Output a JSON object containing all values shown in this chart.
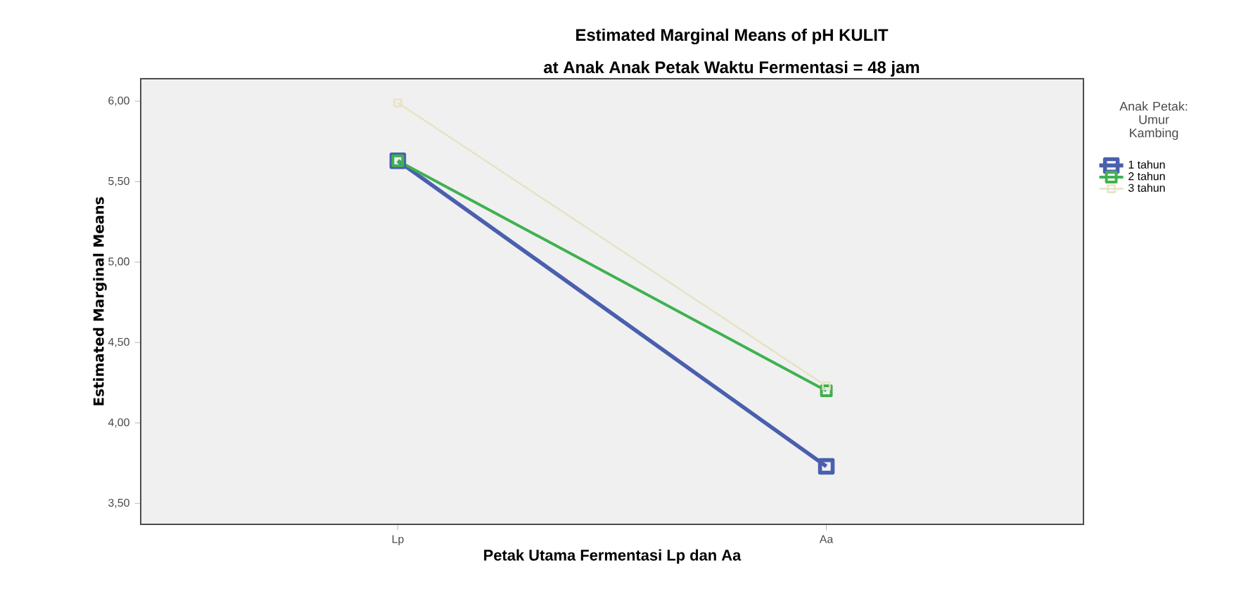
{
  "chart_data": {
    "type": "line",
    "title": "Estimated Marginal Means of pH KULIT",
    "subtitle": "at Anak Anak Petak Waktu Fermentasi = 48 jam",
    "xlabel": "Petak Utama Fermentasi Lp dan Aa",
    "ylabel": "Estimated Marginal Means",
    "legend_title": "Anak Petak: Umur Kambing",
    "categories": [
      "Lp",
      "Aa"
    ],
    "series": [
      {
        "name": "1 tahun",
        "color": "#4a5fae",
        "values": [
          5.63,
          3.73
        ]
      },
      {
        "name": "2 tahun",
        "color": "#3fb150",
        "values": [
          5.63,
          4.2
        ]
      },
      {
        "name": "3 tahun",
        "color": "#e6e2c2",
        "values": [
          5.99,
          4.23
        ]
      }
    ],
    "ylim": [
      3.37,
      6.14
    ],
    "yticks": [
      {
        "value": 3.5,
        "label": "3,50"
      },
      {
        "value": 4.0,
        "label": "4,00"
      },
      {
        "value": 4.5,
        "label": "4,50"
      },
      {
        "value": 5.0,
        "label": "5,00"
      },
      {
        "value": 5.5,
        "label": "5,50"
      },
      {
        "value": 6.0,
        "label": "6,00"
      }
    ],
    "grid": false,
    "legend": "right",
    "marker": "square",
    "line_style": "solid"
  }
}
